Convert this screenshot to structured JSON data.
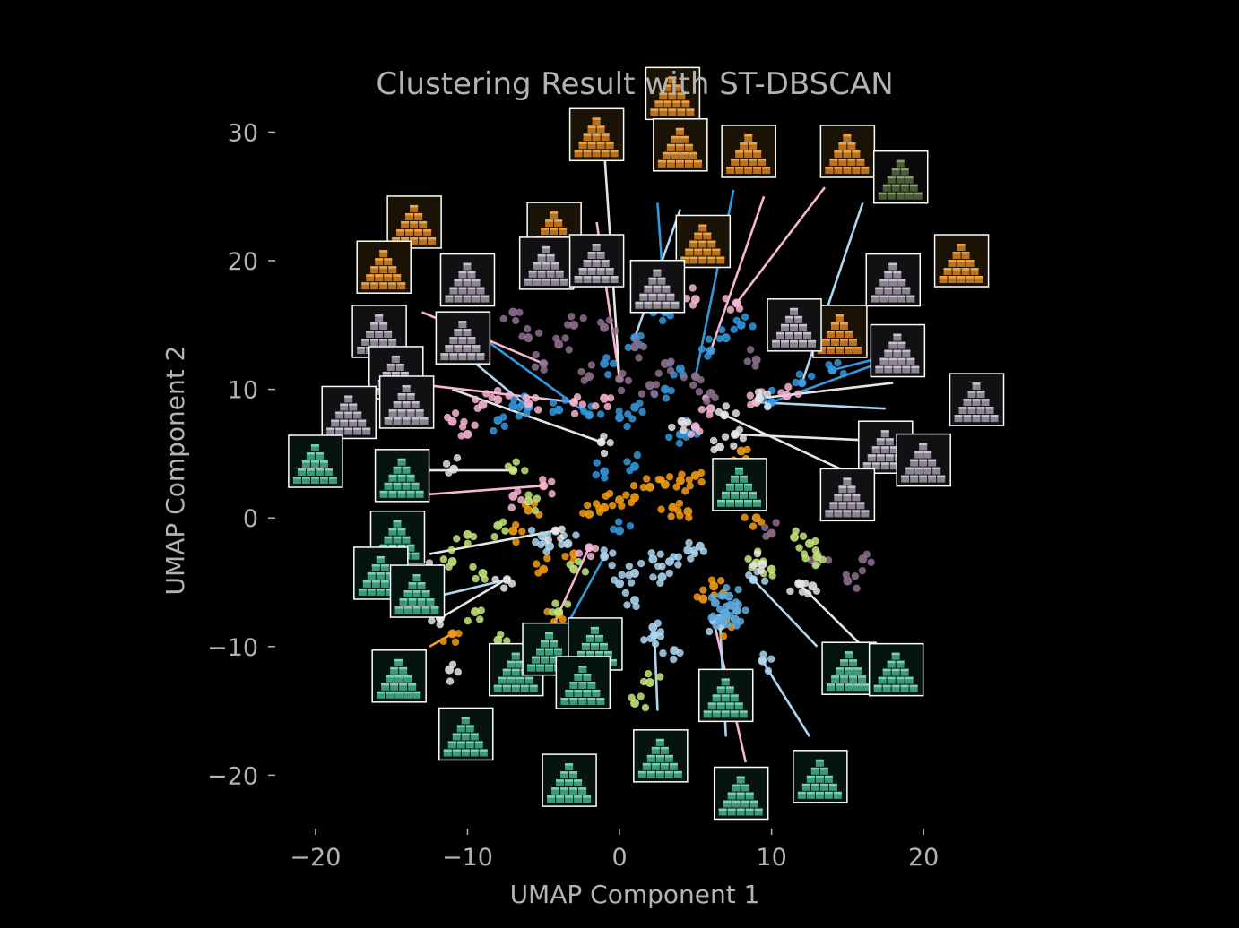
{
  "chart_data": {
    "type": "scatter",
    "title": "Clustering Result with ST-DBSCAN",
    "xlabel": "UMAP Component 1",
    "ylabel": "UMAP Component 2",
    "xlim": [
      -22,
      24
    ],
    "ylim": [
      -24.5,
      34
    ],
    "xticks": [
      -20,
      -10,
      0,
      10,
      20
    ],
    "xtick_labels": [
      "−20",
      "−10",
      "0",
      "10",
      "20"
    ],
    "yticks": [
      -20,
      -10,
      0,
      10,
      20,
      30
    ],
    "ytick_labels": [
      "−20",
      "−10",
      "0",
      "10",
      "20",
      "30"
    ],
    "grid": false,
    "legend": "none",
    "background": "#000000",
    "text_color": "#b3b3b3",
    "clusters": [
      {
        "color": "#f39c12",
        "points": [
          [
            0,
            1.4
          ],
          [
            1,
            1.6
          ],
          [
            2,
            2.4
          ],
          [
            3,
            2.6
          ],
          [
            4,
            2.9
          ],
          [
            5,
            3.3
          ],
          [
            3.5,
            0.8
          ],
          [
            4.5,
            0.5
          ],
          [
            -1,
            0.8
          ],
          [
            -2,
            0.3
          ],
          [
            -6,
            0.6
          ],
          [
            -7,
            -1
          ],
          [
            8,
            5.2
          ],
          [
            9,
            0
          ],
          [
            -3,
            -2.8
          ],
          [
            -5,
            -4
          ],
          [
            5.5,
            -6.3
          ],
          [
            6.2,
            -5.3
          ],
          [
            6.8,
            -8.3
          ],
          [
            -11,
            -9
          ],
          [
            -4,
            -7.5
          ]
        ]
      },
      {
        "color": "#3498db",
        "points": [
          [
            -6,
            8.6
          ],
          [
            -4,
            8.4
          ],
          [
            -2,
            8
          ],
          [
            0,
            7.8
          ],
          [
            1,
            8.6
          ],
          [
            3,
            10
          ],
          [
            4,
            11.6
          ],
          [
            6,
            13
          ],
          [
            7,
            14
          ],
          [
            8,
            15
          ],
          [
            -7,
            8.7
          ],
          [
            -8,
            7.6
          ],
          [
            4,
            6.5
          ],
          [
            5,
            7
          ],
          [
            10,
            9
          ],
          [
            12,
            10.5
          ],
          [
            14,
            11.5
          ],
          [
            -1,
            12
          ],
          [
            1,
            14
          ],
          [
            3,
            16
          ],
          [
            -1,
            3.6
          ],
          [
            1,
            4
          ],
          [
            0,
            -1
          ]
        ]
      },
      {
        "color": "#f7b6d2",
        "points": [
          [
            -9,
            8.8
          ],
          [
            -8,
            9.2
          ],
          [
            -6,
            8.9
          ],
          [
            -3,
            9
          ],
          [
            -1,
            9.3
          ],
          [
            5,
            7.1
          ],
          [
            6,
            8.5
          ],
          [
            9,
            9
          ],
          [
            11,
            9.5
          ],
          [
            -5,
            2.5
          ],
          [
            -7,
            1.7
          ],
          [
            -2,
            -2.3
          ],
          [
            7.7,
            16.7
          ],
          [
            5,
            17
          ],
          [
            -10,
            6.5
          ],
          [
            -11,
            7.5
          ]
        ]
      },
      {
        "color": "#8e6f8e",
        "points": [
          [
            -3,
            15
          ],
          [
            -1,
            14.8
          ],
          [
            1,
            13.3
          ],
          [
            3,
            12
          ],
          [
            5,
            11
          ],
          [
            -5,
            12
          ],
          [
            -2,
            11
          ],
          [
            -6,
            14
          ],
          [
            -4,
            13.5
          ],
          [
            0,
            10.8
          ],
          [
            2,
            10.3
          ],
          [
            6,
            9.7
          ],
          [
            9,
            12.3
          ],
          [
            10,
            -1.2
          ],
          [
            13,
            -3.5
          ],
          [
            15,
            -4.9
          ],
          [
            16,
            -3.2
          ],
          [
            -7,
            16
          ]
        ]
      },
      {
        "color": "#c5e67a",
        "points": [
          [
            -7,
            3.7
          ],
          [
            -6,
            1.3
          ],
          [
            -8,
            -0.6
          ],
          [
            -10,
            -1.3
          ],
          [
            -9,
            -4.3
          ],
          [
            -11,
            -3.4
          ],
          [
            -4,
            -7.3
          ],
          [
            -3,
            -4
          ],
          [
            11.5,
            -1.5
          ],
          [
            12.5,
            -2
          ],
          [
            13,
            -3
          ],
          [
            10,
            -4
          ],
          [
            9,
            -3.5
          ],
          [
            2,
            -12.8
          ],
          [
            1,
            -14.4
          ],
          [
            -8,
            -9.5
          ],
          [
            -9.5,
            -7.3
          ]
        ]
      },
      {
        "color": "#aed6f1",
        "points": [
          [
            2.2,
            -3.2
          ],
          [
            3.3,
            -3.4
          ],
          [
            4.5,
            -2.5
          ],
          [
            5.3,
            -2.2
          ],
          [
            2.8,
            -4.6
          ],
          [
            1,
            -4.3
          ],
          [
            0,
            -5.1
          ],
          [
            -1,
            -3
          ],
          [
            2.2,
            -8.5
          ],
          [
            2.3,
            -9.1
          ],
          [
            -5.1,
            -1.4
          ],
          [
            -4.6,
            -2.2
          ],
          [
            -3.4,
            -2
          ],
          [
            8.8,
            -4.8
          ],
          [
            9.4,
            -11.1
          ],
          [
            6.2,
            -8
          ],
          [
            3.6,
            -10.3
          ],
          [
            1,
            -6.4
          ]
        ]
      },
      {
        "color": "#e5e5e5",
        "points": [
          [
            -1.2,
            5.9
          ],
          [
            -4.2,
            -1
          ],
          [
            -7.4,
            -4.8
          ],
          [
            -11.8,
            -7.8
          ],
          [
            -10.9,
            3.8
          ],
          [
            -12.5,
            -4.2
          ],
          [
            -14,
            2.3
          ],
          [
            -11.2,
            -11.8
          ],
          [
            11.8,
            -5.1
          ],
          [
            12.7,
            -5.3
          ],
          [
            9.4,
            -3.6
          ],
          [
            6.6,
            5.5
          ],
          [
            6.9,
            8
          ],
          [
            9.2,
            9.3
          ],
          [
            7.6,
            6.5
          ],
          [
            4.1,
            7.5
          ]
        ]
      },
      {
        "color": "#5dade2",
        "points": [
          [
            7.3,
            -6.8
          ],
          [
            6.9,
            -7.4
          ],
          [
            7.6,
            -7.9
          ],
          [
            6.6,
            -8.0
          ],
          [
            7.2,
            -6.1
          ],
          [
            6.3,
            -6.6
          ],
          [
            7.7,
            -7.2
          ]
        ]
      }
    ],
    "leaders": [
      {
        "color": "#e5e5e5",
        "from": [
          -1.2,
          5.9
        ],
        "to": [
          -11,
          10
        ]
      },
      {
        "color": "#aed6f1",
        "from": [
          -6,
          8.6
        ],
        "to": [
          -12,
          14.5
        ]
      },
      {
        "color": "#f7b6d2",
        "from": [
          -3,
          9
        ],
        "to": [
          -14,
          10.5
        ]
      },
      {
        "color": "#3498db",
        "from": [
          -2,
          8
        ],
        "to": [
          -9,
          14
        ]
      },
      {
        "color": "#f7b6d2",
        "from": [
          -5,
          12
        ],
        "to": [
          -13,
          16
        ]
      },
      {
        "color": "#f7b6d2",
        "from": [
          0,
          10.8
        ],
        "to": [
          -1.5,
          23
        ]
      },
      {
        "color": "#e5e5e5",
        "from": [
          0,
          10.8
        ],
        "to": [
          -1,
          28.5
        ]
      },
      {
        "color": "#3498db",
        "from": [
          3,
          16
        ],
        "to": [
          2.5,
          24.5
        ]
      },
      {
        "color": "#f7b6d2",
        "from": [
          6,
          13
        ],
        "to": [
          9.5,
          25
        ]
      },
      {
        "color": "#3498db",
        "from": [
          5,
          11
        ],
        "to": [
          7.5,
          25.5
        ]
      },
      {
        "color": "#aed6f1",
        "from": [
          1,
          14
        ],
        "to": [
          4,
          24
        ]
      },
      {
        "color": "#f7b6d2",
        "from": [
          7.7,
          16.7
        ],
        "to": [
          13.5,
          25.7
        ]
      },
      {
        "color": "#aed6f1",
        "from": [
          12,
          10.5
        ],
        "to": [
          16,
          24.5
        ]
      },
      {
        "color": "#3498db",
        "from": [
          14,
          11.5
        ],
        "to": [
          19,
          13
        ]
      },
      {
        "color": "#3498db",
        "from": [
          10,
          9
        ],
        "to": [
          17,
          12
        ]
      },
      {
        "color": "#e5e5e5",
        "from": [
          9.2,
          9.3
        ],
        "to": [
          18,
          10.5
        ]
      },
      {
        "color": "#e5e5e5",
        "from": [
          7.6,
          6.5
        ],
        "to": [
          17,
          6
        ]
      },
      {
        "color": "#e5e5e5",
        "from": [
          6.9,
          8
        ],
        "to": [
          16,
          3
        ]
      },
      {
        "color": "#aed6f1",
        "from": [
          9,
          9
        ],
        "to": [
          17.5,
          8.5
        ]
      },
      {
        "color": "#e5e5e5",
        "from": [
          -7,
          3.7
        ],
        "to": [
          -14,
          3.7
        ]
      },
      {
        "color": "#f7b6d2",
        "from": [
          -5,
          2.5
        ],
        "to": [
          -13,
          1.8
        ]
      },
      {
        "color": "#e5e5e5",
        "from": [
          -4.2,
          -1
        ],
        "to": [
          -12.5,
          -2.8
        ]
      },
      {
        "color": "#aed6f1",
        "from": [
          -7.4,
          -4.8
        ],
        "to": [
          -14.5,
          -6.8
        ]
      },
      {
        "color": "#e5e5e5",
        "from": [
          -11.8,
          -7.8
        ],
        "to": [
          -7.5,
          -4.8
        ]
      },
      {
        "color": "#f39c12",
        "from": [
          -11,
          -9
        ],
        "to": [
          -12.5,
          -10
        ]
      },
      {
        "color": "#aed6f1",
        "from": [
          9.4,
          -11.1
        ],
        "to": [
          12.5,
          -17
        ]
      },
      {
        "color": "#e5e5e5",
        "from": [
          11.8,
          -5.1
        ],
        "to": [
          16,
          -10
        ]
      },
      {
        "color": "#aed6f1",
        "from": [
          8.8,
          -4.8
        ],
        "to": [
          13,
          -10
        ]
      },
      {
        "color": "#f7b6d2",
        "from": [
          6.2,
          -8
        ],
        "to": [
          8.3,
          -19
        ]
      },
      {
        "color": "#aed6f1",
        "from": [
          2.3,
          -9.1
        ],
        "to": [
          2.5,
          -15
        ]
      },
      {
        "color": "#3498db",
        "from": [
          -1,
          -3
        ],
        "to": [
          -4,
          -9.5
        ]
      },
      {
        "color": "#f7b6d2",
        "from": [
          -2,
          -2.3
        ],
        "to": [
          -5,
          -10
        ]
      },
      {
        "color": "#aed6f1",
        "from": [
          6.6,
          -8
        ],
        "to": [
          7,
          -17
        ]
      }
    ],
    "thumbnails": [
      {
        "pos": [
          -13.5,
          23
        ],
        "tint": "orange"
      },
      {
        "pos": [
          -15.5,
          19.5
        ],
        "tint": "orange"
      },
      {
        "pos": [
          -1.5,
          29.8
        ],
        "tint": "orange"
      },
      {
        "pos": [
          -4.3,
          22.5
        ],
        "tint": "orange"
      },
      {
        "pos": [
          3.5,
          33
        ],
        "tint": "orange"
      },
      {
        "pos": [
          4,
          29
        ],
        "tint": "orange"
      },
      {
        "pos": [
          8.5,
          28.5
        ],
        "tint": "orange"
      },
      {
        "pos": [
          15,
          28.5
        ],
        "tint": "orange"
      },
      {
        "pos": [
          18.5,
          26.5
        ],
        "tint": "dark"
      },
      {
        "pos": [
          5.5,
          21.5
        ],
        "tint": "orange"
      },
      {
        "pos": [
          22.5,
          20
        ],
        "tint": "orange"
      },
      {
        "pos": [
          14.5,
          14.5
        ],
        "tint": "orange"
      },
      {
        "pos": [
          -4.8,
          19.8
        ],
        "tint": "grey"
      },
      {
        "pos": [
          -10,
          18.5
        ],
        "tint": "grey"
      },
      {
        "pos": [
          -1.5,
          20
        ],
        "tint": "grey"
      },
      {
        "pos": [
          2.5,
          18
        ],
        "tint": "grey"
      },
      {
        "pos": [
          -10.3,
          14
        ],
        "tint": "grey"
      },
      {
        "pos": [
          -15.8,
          14.5
        ],
        "tint": "grey"
      },
      {
        "pos": [
          -14.7,
          11.3
        ],
        "tint": "grey"
      },
      {
        "pos": [
          -14,
          9
        ],
        "tint": "grey"
      },
      {
        "pos": [
          -17.8,
          8.2
        ],
        "tint": "grey"
      },
      {
        "pos": [
          11.5,
          15
        ],
        "tint": "grey"
      },
      {
        "pos": [
          18,
          18.5
        ],
        "tint": "grey"
      },
      {
        "pos": [
          18.3,
          13
        ],
        "tint": "grey"
      },
      {
        "pos": [
          23.5,
          9.2
        ],
        "tint": "grey"
      },
      {
        "pos": [
          17.5,
          5.5
        ],
        "tint": "grey"
      },
      {
        "pos": [
          20,
          4.5
        ],
        "tint": "grey"
      },
      {
        "pos": [
          15,
          1.8
        ],
        "tint": "grey"
      },
      {
        "pos": [
          -20,
          4.4
        ],
        "tint": "teal"
      },
      {
        "pos": [
          -14.3,
          3.3
        ],
        "tint": "teal"
      },
      {
        "pos": [
          -14.6,
          -1.5
        ],
        "tint": "teal"
      },
      {
        "pos": [
          -15.7,
          -4.3
        ],
        "tint": "teal"
      },
      {
        "pos": [
          -13.3,
          -5.7
        ],
        "tint": "teal"
      },
      {
        "pos": [
          -14.5,
          -12.3
        ],
        "tint": "teal"
      },
      {
        "pos": [
          -10.1,
          -16.8
        ],
        "tint": "teal"
      },
      {
        "pos": [
          -6.8,
          -11.8
        ],
        "tint": "teal"
      },
      {
        "pos": [
          -4.6,
          -10.2
        ],
        "tint": "teal"
      },
      {
        "pos": [
          -1.6,
          -9.8
        ],
        "tint": "teal"
      },
      {
        "pos": [
          -2.4,
          -12.8
        ],
        "tint": "teal"
      },
      {
        "pos": [
          -3.3,
          -20.4
        ],
        "tint": "teal"
      },
      {
        "pos": [
          2.7,
          -18.5
        ],
        "tint": "teal"
      },
      {
        "pos": [
          7,
          -13.8
        ],
        "tint": "teal"
      },
      {
        "pos": [
          8,
          -21.4
        ],
        "tint": "teal"
      },
      {
        "pos": [
          13.2,
          -20.1
        ],
        "tint": "teal"
      },
      {
        "pos": [
          15.1,
          -11.7
        ],
        "tint": "teal"
      },
      {
        "pos": [
          18.2,
          -11.8
        ],
        "tint": "teal"
      },
      {
        "pos": [
          7.9,
          2.6
        ],
        "tint": "teal"
      }
    ]
  }
}
